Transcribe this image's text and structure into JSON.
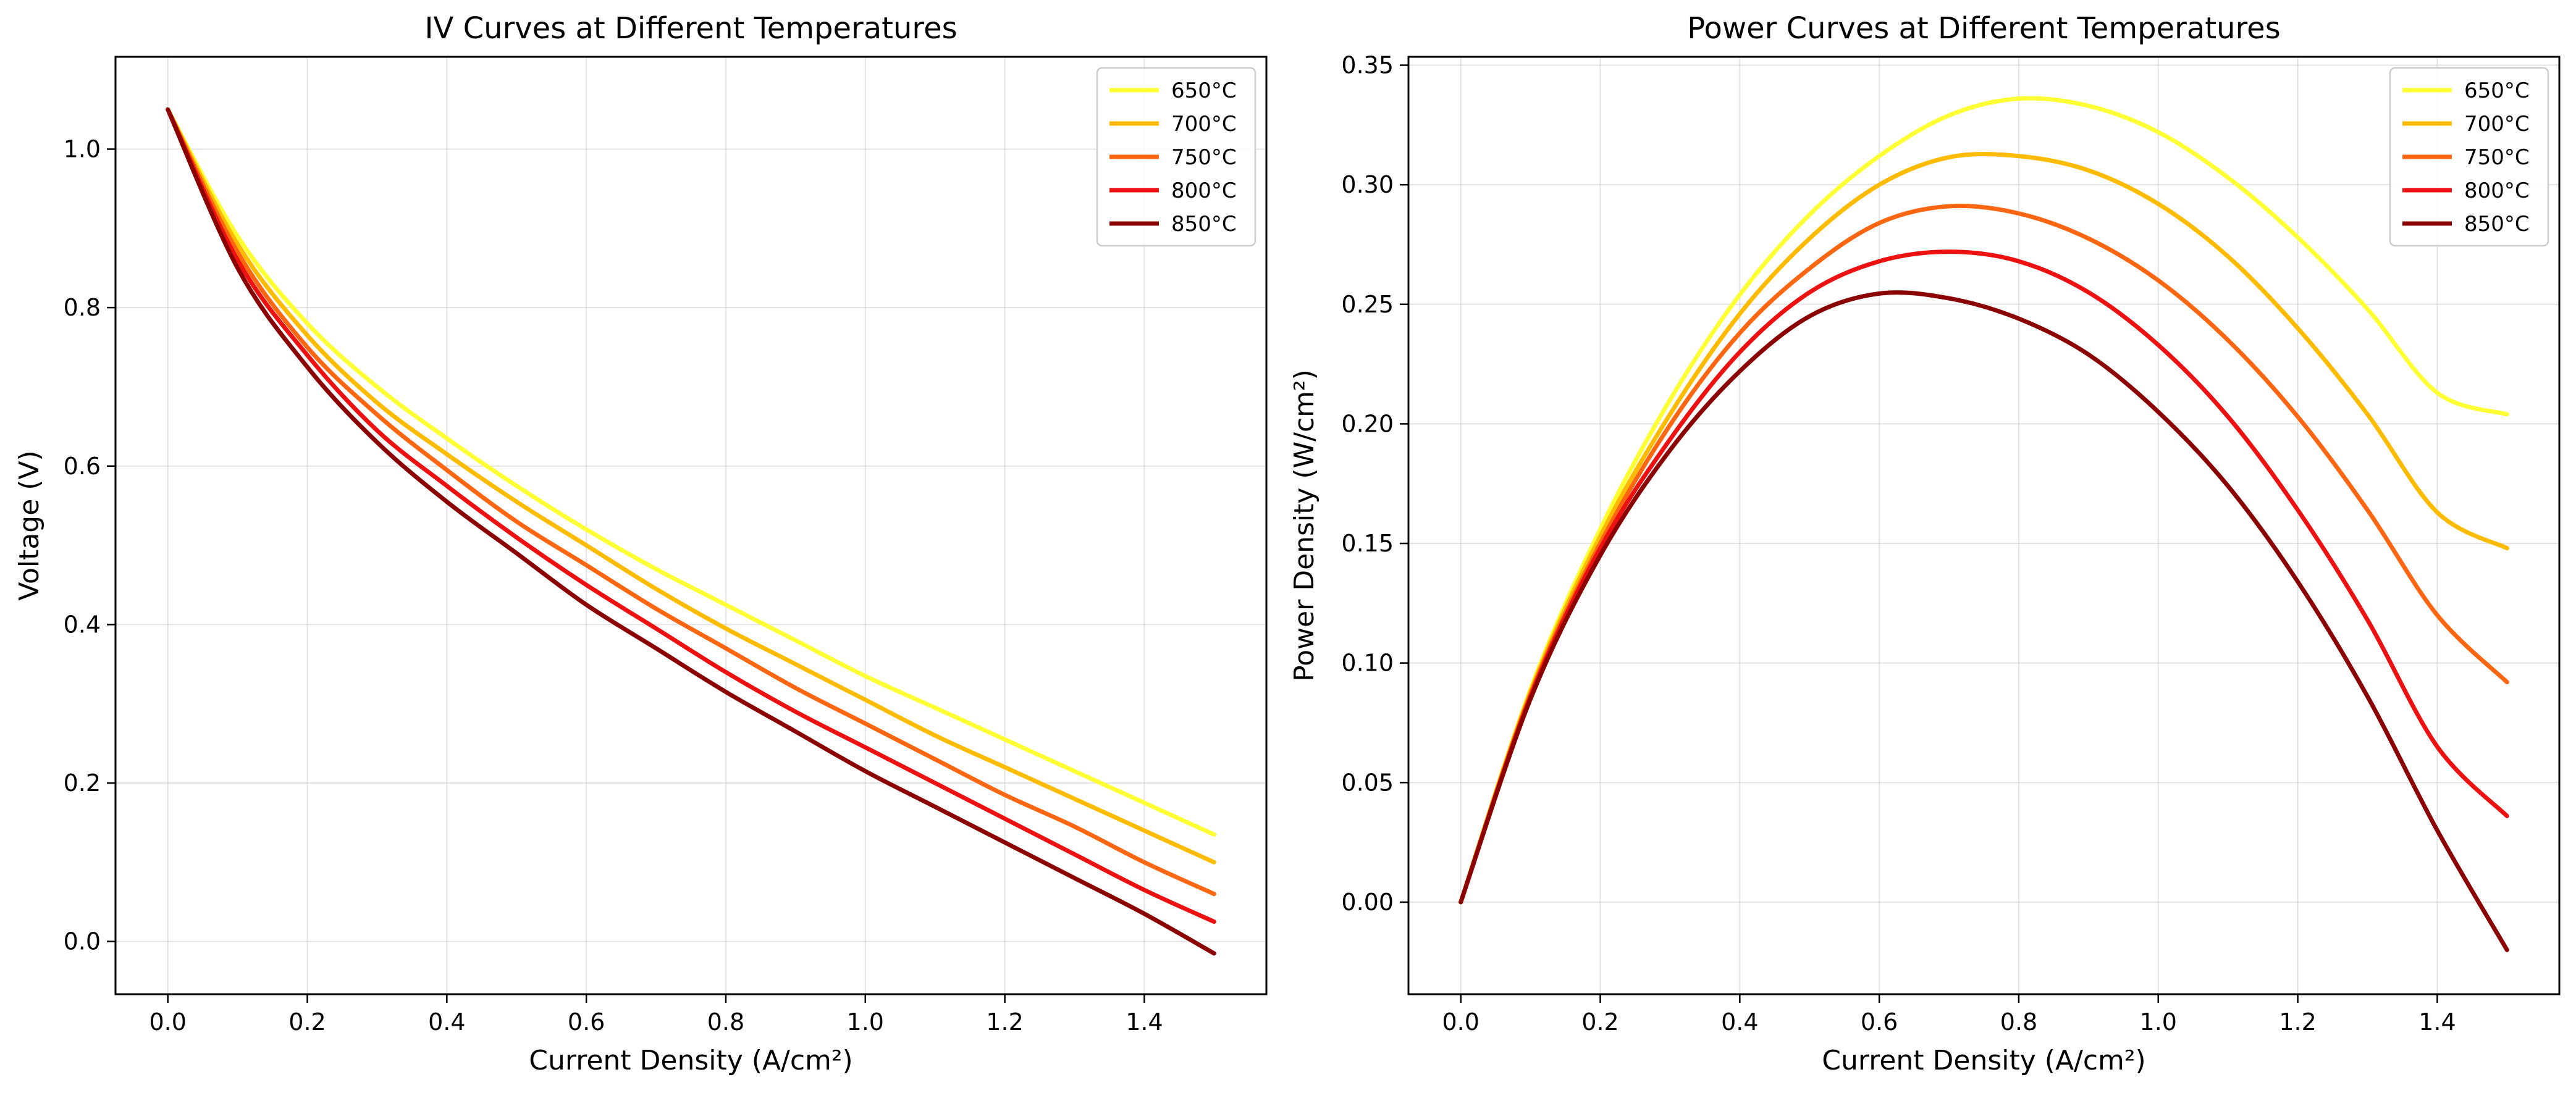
{
  "chart_data": [
    {
      "type": "line",
      "title": "IV Curves at Different Temperatures",
      "xlabel": "Current Density (A/cm²)",
      "ylabel": "Voltage (V)",
      "xlim": [
        -0.075,
        1.575
      ],
      "ylim": [
        -0.0665,
        1.1165
      ],
      "xticks": [
        0.0,
        0.2,
        0.4,
        0.6,
        0.8,
        1.0,
        1.2,
        1.4
      ],
      "yticks": [
        0.0,
        0.2,
        0.4,
        0.6,
        0.8,
        1.0
      ],
      "xtick_labels": [
        "0.0",
        "0.2",
        "0.4",
        "0.6",
        "0.8",
        "1.0",
        "1.2",
        "1.4"
      ],
      "ytick_labels": [
        "0.0",
        "0.2",
        "0.4",
        "0.6",
        "0.8",
        "1.0"
      ],
      "grid": true,
      "legend_position": "top-right",
      "x": [
        0.0,
        0.1,
        0.2,
        0.3,
        0.4,
        0.5,
        0.6,
        0.7,
        0.8,
        0.9,
        1.0,
        1.1,
        1.2,
        1.3,
        1.4,
        1.5
      ],
      "series": [
        {
          "name": "650°C",
          "color": "#ffff33",
          "values": [
            1.05,
            0.89,
            0.78,
            0.7,
            0.635,
            0.575,
            0.52,
            0.47,
            0.425,
            0.38,
            0.335,
            0.295,
            0.255,
            0.215,
            0.175,
            0.135
          ]
        },
        {
          "name": "700°C",
          "color": "#ffbb00",
          "values": [
            1.05,
            0.88,
            0.765,
            0.68,
            0.615,
            0.555,
            0.5,
            0.445,
            0.395,
            0.35,
            0.305,
            0.26,
            0.22,
            0.18,
            0.14,
            0.1
          ]
        },
        {
          "name": "750°C",
          "color": "#ff6611",
          "values": [
            1.05,
            0.87,
            0.75,
            0.665,
            0.595,
            0.53,
            0.475,
            0.42,
            0.37,
            0.32,
            0.275,
            0.23,
            0.185,
            0.145,
            0.1,
            0.06
          ]
        },
        {
          "name": "800°C",
          "color": "#ee1111",
          "values": [
            1.05,
            0.86,
            0.74,
            0.645,
            0.575,
            0.51,
            0.45,
            0.395,
            0.34,
            0.29,
            0.245,
            0.2,
            0.155,
            0.11,
            0.065,
            0.025
          ]
        },
        {
          "name": "850°C",
          "color": "#8b0000",
          "values": [
            1.05,
            0.85,
            0.725,
            0.63,
            0.555,
            0.49,
            0.425,
            0.37,
            0.315,
            0.265,
            0.215,
            0.17,
            0.125,
            0.08,
            0.035,
            -0.015
          ]
        }
      ]
    },
    {
      "type": "line",
      "title": "Power Curves at Different Temperatures",
      "xlabel": "Current Density (A/cm²)",
      "ylabel": "Power Density (W/cm²)",
      "xlim": [
        -0.075,
        1.575
      ],
      "ylim": [
        -0.0385,
        0.3535
      ],
      "xticks": [
        0.0,
        0.2,
        0.4,
        0.6,
        0.8,
        1.0,
        1.2,
        1.4
      ],
      "yticks": [
        0.0,
        0.05,
        0.1,
        0.15,
        0.2,
        0.25,
        0.3,
        0.35
      ],
      "xtick_labels": [
        "0.0",
        "0.2",
        "0.4",
        "0.6",
        "0.8",
        "1.0",
        "1.2",
        "1.4"
      ],
      "ytick_labels": [
        "0.00",
        "0.05",
        "0.10",
        "0.15",
        "0.20",
        "0.25",
        "0.30",
        "0.35"
      ],
      "grid": true,
      "legend_position": "top-right",
      "x": [
        0.0,
        0.1,
        0.2,
        0.3,
        0.4,
        0.5,
        0.6,
        0.7,
        0.8,
        0.9,
        1.0,
        1.1,
        1.2,
        1.3,
        1.4,
        1.5
      ],
      "series": [
        {
          "name": "650°C",
          "color": "#ffff33",
          "values": [
            0.0,
            0.089,
            0.156,
            0.21,
            0.254,
            0.2875,
            0.312,
            0.329,
            0.336,
            0.333,
            0.322,
            0.303,
            0.278,
            0.248,
            0.213,
            0.204
          ]
        },
        {
          "name": "700°C",
          "color": "#ffbb00",
          "values": [
            0.0,
            0.088,
            0.153,
            0.204,
            0.246,
            0.2775,
            0.3,
            0.3115,
            0.312,
            0.306,
            0.292,
            0.27,
            0.24,
            0.204,
            0.163,
            0.148
          ]
        },
        {
          "name": "750°C",
          "color": "#ff6611",
          "values": [
            0.0,
            0.087,
            0.15,
            0.1995,
            0.238,
            0.265,
            0.284,
            0.291,
            0.288,
            0.2775,
            0.26,
            0.235,
            0.203,
            0.164,
            0.12,
            0.092
          ]
        },
        {
          "name": "800°C",
          "color": "#ee1111",
          "values": [
            0.0,
            0.086,
            0.148,
            0.1935,
            0.23,
            0.255,
            0.268,
            0.272,
            0.268,
            0.255,
            0.233,
            0.203,
            0.164,
            0.118,
            0.065,
            0.036
          ]
        },
        {
          "name": "850°C",
          "color": "#8b0000",
          "values": [
            0.0,
            0.085,
            0.145,
            0.189,
            0.222,
            0.245,
            0.2545,
            0.2525,
            0.244,
            0.229,
            0.205,
            0.174,
            0.134,
            0.086,
            0.03,
            -0.02
          ]
        }
      ]
    }
  ]
}
